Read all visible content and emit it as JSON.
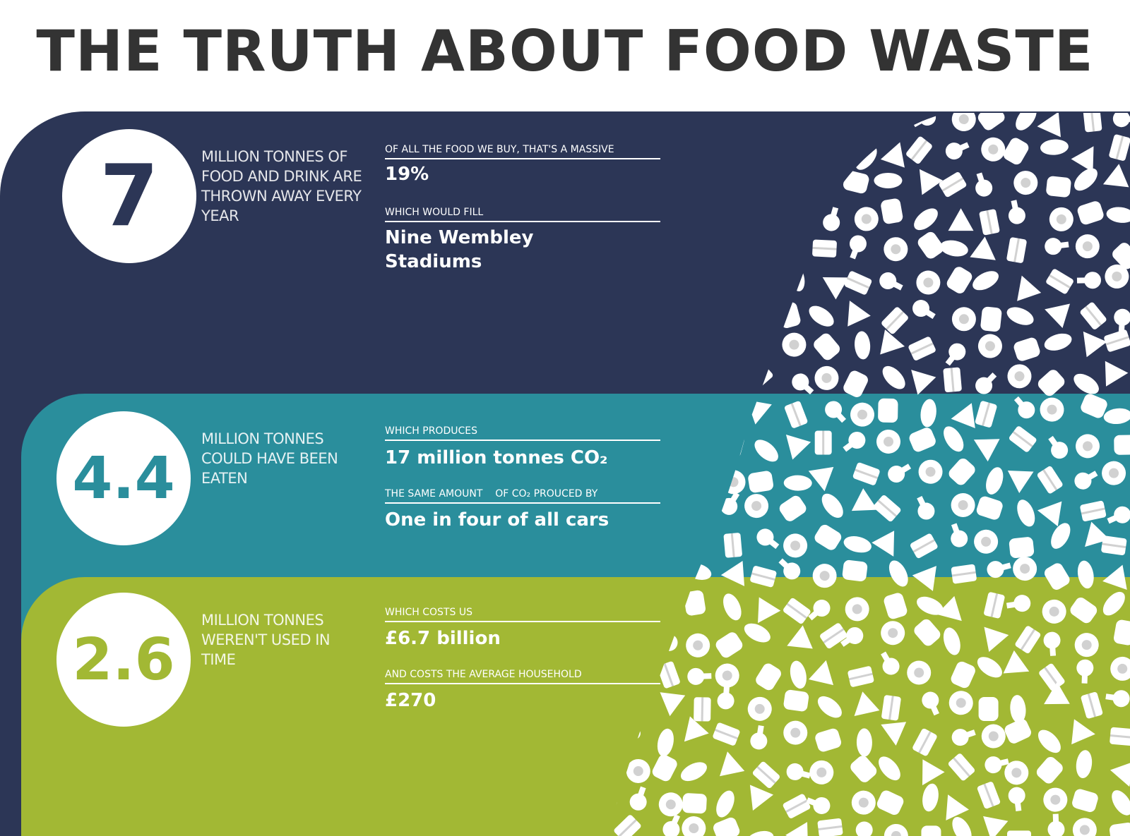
{
  "title": "THE TRUTH ABOUT FOOD WASTE",
  "colors": {
    "navy": "#2c3656",
    "teal": "#2a8e9c",
    "green": "#a2b834",
    "title": "#333333",
    "white": "#ffffff"
  },
  "sections": [
    {
      "number": "7",
      "description": "MILLION TONNES OF FOOD AND DRINK ARE THROWN AWAY EVERY YEAR",
      "facts": [
        {
          "label": "OF ALL THE FOOD WE BUY, THAT'S A MASSIVE",
          "value": "19%"
        },
        {
          "label": "WHICH WOULD FILL",
          "value": "Nine Wembley Stadiums"
        }
      ]
    },
    {
      "number": "4.4",
      "description": "MILLION TONNES COULD HAVE BEEN EATEN",
      "facts": [
        {
          "label": "WHICH PRODUCES",
          "value": "17 million tonnes CO₂"
        },
        {
          "label": "THE SAME AMOUNT    OF CO₂ PROUCED BY",
          "value": "One in four of all cars"
        }
      ]
    },
    {
      "number": "2.6",
      "description": "MILLION TONNES WEREN'T USED IN TIME",
      "facts": [
        {
          "label": "WHICH COSTS US",
          "value": "£6.7 billion"
        },
        {
          "label": "AND COSTS THE AVERAGE HOUSEHOLD",
          "value": "£270"
        }
      ]
    }
  ],
  "illustration": {
    "icons": [
      "fish-icon",
      "chicken-leg-icon",
      "egg-icon",
      "bread-icon",
      "pizza-icon",
      "banana-icon",
      "drink-cup-icon",
      "cheese-icon",
      "burger-icon",
      "lemon-icon",
      "pineapple-icon",
      "corn-icon",
      "milk-bottle-icon",
      "cupcake-icon",
      "apple-icon",
      "sausage-icon",
      "watermelon-icon",
      "fries-icon",
      "carrot-icon",
      "mushroom-icon"
    ]
  }
}
